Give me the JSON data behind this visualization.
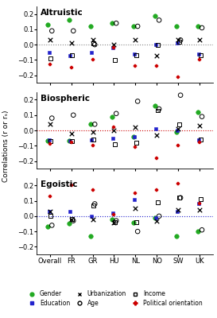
{
  "categories": [
    "Overall",
    "FR",
    "GR",
    "HU",
    "NL",
    "NO",
    "SW",
    "UK"
  ],
  "panels": [
    "Altruistic",
    "Biospheric",
    "Egoistic"
  ],
  "zero_line_colors": [
    "#888888",
    "#cc0000",
    "#2222cc"
  ],
  "series": {
    "Gender": {
      "marker": "o",
      "color": "#22aa22",
      "filled": true,
      "size": 4,
      "Altruistic": [
        0.13,
        0.16,
        0.12,
        0.14,
        0.12,
        0.19,
        0.12,
        0.12
      ],
      "Biospheric": [
        -0.07,
        -0.07,
        0.04,
        0.09,
        -0.04,
        0.16,
        -0.01,
        0.12
      ],
      "Egoistic": [
        -0.07,
        -0.05,
        -0.13,
        -0.02,
        -0.04,
        -0.01,
        -0.13,
        -0.1
      ]
    },
    "Age": {
      "marker": "o",
      "color": "#000000",
      "filled": false,
      "size": 4,
      "Altruistic": [
        0.09,
        0.09,
        0.0,
        0.14,
        0.12,
        0.16,
        0.03,
        0.11
      ],
      "Biospheric": [
        0.08,
        0.1,
        0.04,
        0.11,
        0.19,
        0.14,
        0.23,
        0.09
      ],
      "Egoistic": [
        -0.06,
        -0.03,
        0.08,
        -0.03,
        -0.1,
        0.0,
        0.12,
        -0.09
      ]
    },
    "Education": {
      "marker": "s",
      "color": "#2222cc",
      "filled": true,
      "size": 3.5,
      "Altruistic": [
        -0.05,
        -0.07,
        -0.05,
        -0.02,
        -0.06,
        0.0,
        0.01,
        -0.06
      ],
      "Biospheric": [
        -0.06,
        -0.07,
        -0.06,
        -0.05,
        -0.04,
        0.01,
        0.0,
        -0.06
      ],
      "Egoistic": [
        0.03,
        0.03,
        0.0,
        0.02,
        0.11,
        -0.01,
        0.03,
        0.08
      ]
    },
    "Income": {
      "marker": "s",
      "color": "#000000",
      "filled": false,
      "size": 3.5,
      "Altruistic": [
        -0.09,
        -0.07,
        0.01,
        -0.1,
        -0.07,
        0.0,
        0.02,
        -0.07
      ],
      "Biospheric": [
        -0.07,
        -0.07,
        -0.06,
        -0.09,
        -0.08,
        0.13,
        0.04,
        -0.06
      ],
      "Egoistic": [
        0.0,
        -0.02,
        0.07,
        -0.04,
        -0.04,
        0.09,
        0.12,
        0.11
      ]
    },
    "Urbanization": {
      "marker": "x",
      "color": "#000000",
      "filled": false,
      "size": 4,
      "Altruistic": [
        0.03,
        0.01,
        0.03,
        0.0,
        0.03,
        -0.07,
        0.03,
        0.03
      ],
      "Biospheric": [
        0.04,
        -0.02,
        -0.01,
        0.0,
        0.02,
        -0.03,
        0.01,
        0.03
      ],
      "Egoistic": [
        0.03,
        -0.02,
        -0.02,
        -0.04,
        0.05,
        -0.03,
        0.04,
        0.04
      ]
    },
    "Political orientation": {
      "marker": "P",
      "color": "#cc0000",
      "filled": true,
      "size": 3.5,
      "Altruistic": [
        -0.13,
        -0.15,
        -0.1,
        -0.02,
        -0.14,
        -0.14,
        -0.21,
        -0.1
      ],
      "Biospheric": [
        -0.09,
        -0.08,
        -0.1,
        0.02,
        -0.11,
        -0.18,
        -0.1,
        -0.08
      ],
      "Egoistic": [
        0.13,
        0.2,
        0.17,
        0.01,
        0.15,
        0.17,
        0.21,
        0.08
      ]
    }
  },
  "ylim": [
    -0.25,
    0.25
  ],
  "yticks": [
    -0.2,
    -0.1,
    0.0,
    0.1,
    0.2
  ],
  "ylabel": "Correlations (r or rₛ)",
  "title_fontsize": 7.5,
  "axis_fontsize": 6,
  "legend_fontsize": 5.5,
  "bg_color": "#ffffff"
}
